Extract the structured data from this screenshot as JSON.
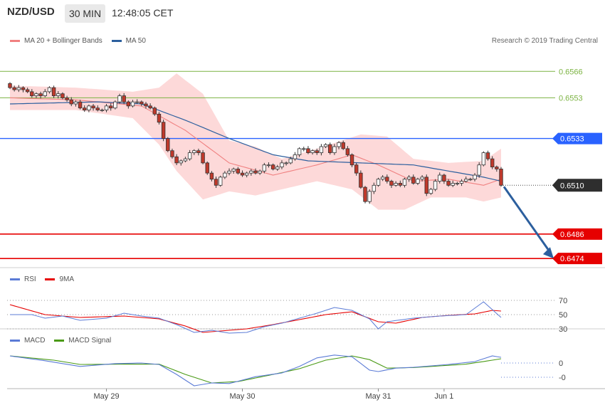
{
  "header": {
    "pair": "NZD/USD",
    "timeframe": "30 MIN",
    "time": "12:48:05 CET"
  },
  "research": "Research © 2019 Trading Central",
  "colors": {
    "ma20": "#f08080",
    "band": "#fdd9d9",
    "ma50": "#2c5f9e",
    "up": "#ffffff",
    "down": "#c0392b",
    "res": "#7cb342",
    "pivot": "#2962ff",
    "sup": "#e60000",
    "arrow": "#2c5f9e",
    "rsi": "#5b7bd6",
    "rsima": "#e60000",
    "macd": "#5b7bd6",
    "signal": "#4a9a16"
  },
  "chart_data": [
    {
      "type": "candlestick",
      "legend": [
        {
          "name": "MA 20 + Bollinger Bands",
          "color": "#f08080"
        },
        {
          "name": "MA 50",
          "color": "#2c5f9e"
        }
      ],
      "x_labels": [
        {
          "label": "May 29",
          "bar": 22
        },
        {
          "label": "May 30",
          "bar": 53
        },
        {
          "label": "May 31",
          "bar": 84
        },
        {
          "label": "Jun 1",
          "bar": 99
        }
      ],
      "ylim": [
        0.64695,
        0.65745
      ],
      "levels": [
        {
          "label": "0.6566",
          "value": 0.6566,
          "kind": "res"
        },
        {
          "label": "0.6553",
          "value": 0.6553,
          "kind": "res"
        },
        {
          "label": "0.6533",
          "value": 0.6533,
          "kind": "pivot"
        },
        {
          "label": "0.6510",
          "value": 0.651,
          "kind": "current"
        },
        {
          "label": "0.6486",
          "value": 0.6486,
          "kind": "sup"
        },
        {
          "label": "0.6474",
          "value": 0.6474,
          "kind": "sup"
        }
      ],
      "closes": [
        0.6558,
        0.6557,
        0.6558,
        0.6557,
        0.6556,
        0.6554,
        0.6555,
        0.6554,
        0.6556,
        0.6558,
        0.6554,
        0.6555,
        0.6553,
        0.6552,
        0.655,
        0.6551,
        0.6548,
        0.6547,
        0.6549,
        0.6548,
        0.6547,
        0.6547,
        0.6549,
        0.6548,
        0.6551,
        0.6554,
        0.6551,
        0.6549,
        0.6551,
        0.6551,
        0.655,
        0.6549,
        0.6548,
        0.6545,
        0.6541,
        0.6533,
        0.6527,
        0.6524,
        0.6521,
        0.6522,
        0.6523,
        0.6526,
        0.6527,
        0.6526,
        0.6521,
        0.6516,
        0.6513,
        0.651,
        0.6514,
        0.6516,
        0.6517,
        0.6518,
        0.6516,
        0.6515,
        0.6516,
        0.6517,
        0.6516,
        0.6517,
        0.652,
        0.652,
        0.6518,
        0.6519,
        0.6521,
        0.6521,
        0.6523,
        0.6525,
        0.6528,
        0.6528,
        0.6526,
        0.6527,
        0.6526,
        0.6529,
        0.653,
        0.6526,
        0.6529,
        0.6531,
        0.6528,
        0.6525,
        0.652,
        0.6516,
        0.6509,
        0.6502,
        0.6507,
        0.651,
        0.6513,
        0.6514,
        0.6512,
        0.651,
        0.6511,
        0.651,
        0.6513,
        0.6514,
        0.6511,
        0.6513,
        0.6514,
        0.6506,
        0.6508,
        0.6512,
        0.6515,
        0.6512,
        0.651,
        0.6511,
        0.6511,
        0.6512,
        0.6513,
        0.6513,
        0.6515,
        0.652,
        0.6526,
        0.6523,
        0.6519,
        0.6518,
        0.651
      ],
      "ma20_at": [
        [
          0,
          0.6553
        ],
        [
          15,
          0.6552
        ],
        [
          30,
          0.6549
        ],
        [
          40,
          0.6537
        ],
        [
          50,
          0.6521
        ],
        [
          60,
          0.6515
        ],
        [
          70,
          0.652
        ],
        [
          78,
          0.6525
        ],
        [
          84,
          0.652
        ],
        [
          92,
          0.6512
        ],
        [
          100,
          0.6513
        ],
        [
          108,
          0.651
        ],
        [
          112,
          0.6513
        ]
      ],
      "bb_upper_at": [
        [
          0,
          0.6559
        ],
        [
          15,
          0.6558
        ],
        [
          28,
          0.6556
        ],
        [
          34,
          0.6558
        ],
        [
          38,
          0.6565
        ],
        [
          44,
          0.6555
        ],
        [
          50,
          0.6532
        ],
        [
          56,
          0.6529
        ],
        [
          62,
          0.6523
        ],
        [
          70,
          0.6528
        ],
        [
          80,
          0.6535
        ],
        [
          86,
          0.6534
        ],
        [
          92,
          0.6523
        ],
        [
          100,
          0.6521
        ],
        [
          108,
          0.6522
        ],
        [
          112,
          0.6528
        ]
      ],
      "bb_lower_at": [
        [
          0,
          0.6547
        ],
        [
          15,
          0.6547
        ],
        [
          28,
          0.6543
        ],
        [
          34,
          0.653
        ],
        [
          38,
          0.6517
        ],
        [
          44,
          0.6503
        ],
        [
          50,
          0.6507
        ],
        [
          56,
          0.6505
        ],
        [
          62,
          0.6508
        ],
        [
          70,
          0.6512
        ],
        [
          78,
          0.6508
        ],
        [
          84,
          0.6498
        ],
        [
          90,
          0.6498
        ],
        [
          96,
          0.6504
        ],
        [
          104,
          0.6504
        ],
        [
          108,
          0.6502
        ],
        [
          112,
          0.6504
        ]
      ],
      "ma50_at": [
        [
          0,
          0.655
        ],
        [
          20,
          0.6551
        ],
        [
          30,
          0.655
        ],
        [
          40,
          0.6542
        ],
        [
          50,
          0.6533
        ],
        [
          60,
          0.6525
        ],
        [
          68,
          0.6522
        ],
        [
          80,
          0.6521
        ],
        [
          92,
          0.652
        ],
        [
          100,
          0.6517
        ],
        [
          108,
          0.6514
        ],
        [
          112,
          0.6512
        ]
      ],
      "arrow": {
        "from": [
          112,
          0.651
        ],
        "to": [
          124,
          0.6474
        ]
      }
    },
    {
      "type": "line",
      "legend": [
        {
          "name": "RSI",
          "color": "#5b7bd6"
        },
        {
          "name": "9MA",
          "color": "#e60000"
        }
      ],
      "ylim": [
        16,
        84
      ],
      "ticks": [
        {
          "label": "70",
          "value": 70
        },
        {
          "label": "50",
          "value": 50
        },
        {
          "label": "30",
          "value": 30
        }
      ],
      "rsi_at": [
        [
          0,
          50
        ],
        [
          5,
          50
        ],
        [
          8,
          45
        ],
        [
          12,
          48
        ],
        [
          16,
          42
        ],
        [
          22,
          45
        ],
        [
          26,
          52
        ],
        [
          30,
          48
        ],
        [
          34,
          45
        ],
        [
          38,
          36
        ],
        [
          42,
          25
        ],
        [
          46,
          28
        ],
        [
          50,
          24
        ],
        [
          54,
          25
        ],
        [
          58,
          33
        ],
        [
          62,
          38
        ],
        [
          66,
          45
        ],
        [
          70,
          52
        ],
        [
          74,
          60
        ],
        [
          78,
          56
        ],
        [
          82,
          44
        ],
        [
          84,
          30
        ],
        [
          86,
          40
        ],
        [
          92,
          45
        ],
        [
          98,
          48
        ],
        [
          104,
          50
        ],
        [
          108,
          68
        ],
        [
          112,
          46
        ]
      ],
      "ma9_at": [
        [
          0,
          64
        ],
        [
          8,
          50
        ],
        [
          16,
          46
        ],
        [
          26,
          48
        ],
        [
          34,
          44
        ],
        [
          40,
          34
        ],
        [
          44,
          25
        ],
        [
          48,
          27
        ],
        [
          54,
          30
        ],
        [
          60,
          36
        ],
        [
          66,
          43
        ],
        [
          72,
          50
        ],
        [
          78,
          54
        ],
        [
          84,
          40
        ],
        [
          88,
          38
        ],
        [
          94,
          46
        ],
        [
          100,
          49
        ],
        [
          106,
          51
        ],
        [
          110,
          56
        ],
        [
          112,
          55
        ]
      ]
    },
    {
      "type": "line",
      "legend": [
        {
          "name": "MACD",
          "color": "#5b7bd6"
        },
        {
          "name": "MACD Signal",
          "color": "#4a9a16"
        }
      ],
      "ylim": [
        -0.00085,
        0.00045
      ],
      "ticks": [
        {
          "label": "0",
          "value": 0
        },
        {
          "label": "-0",
          "value": -0.0005
        }
      ],
      "macd_at": [
        [
          0,
          0.00025
        ],
        [
          8,
          8e-05
        ],
        [
          16,
          -0.00012
        ],
        [
          24,
          -2e-05
        ],
        [
          30,
          0.0
        ],
        [
          34,
          -5e-05
        ],
        [
          38,
          -0.0004
        ],
        [
          42,
          -0.0008
        ],
        [
          46,
          -0.0007
        ],
        [
          50,
          -0.00072
        ],
        [
          56,
          -0.00048
        ],
        [
          62,
          -0.00035
        ],
        [
          66,
          -0.00012
        ],
        [
          70,
          0.00018
        ],
        [
          74,
          0.00028
        ],
        [
          78,
          0.00022
        ],
        [
          82,
          -0.00025
        ],
        [
          84,
          -0.0003
        ],
        [
          88,
          -0.00018
        ],
        [
          92,
          -0.00015
        ],
        [
          96,
          -0.0001
        ],
        [
          100,
          -5e-05
        ],
        [
          106,
          5e-05
        ],
        [
          110,
          0.00025
        ],
        [
          112,
          0.0002
        ]
      ],
      "signal_at": [
        [
          0,
          0.00025
        ],
        [
          10,
          0.0001
        ],
        [
          16,
          -5e-05
        ],
        [
          26,
          -4e-05
        ],
        [
          34,
          -4e-05
        ],
        [
          40,
          -0.0004
        ],
        [
          46,
          -0.0007
        ],
        [
          52,
          -0.00065
        ],
        [
          60,
          -0.0004
        ],
        [
          66,
          -0.0002
        ],
        [
          72,
          0.0001
        ],
        [
          78,
          0.00025
        ],
        [
          82,
          0.00012
        ],
        [
          86,
          -0.00018
        ],
        [
          92,
          -0.00016
        ],
        [
          98,
          -0.0001
        ],
        [
          104,
          -4e-05
        ],
        [
          110,
          0.0001
        ],
        [
          112,
          0.00015
        ]
      ]
    }
  ]
}
